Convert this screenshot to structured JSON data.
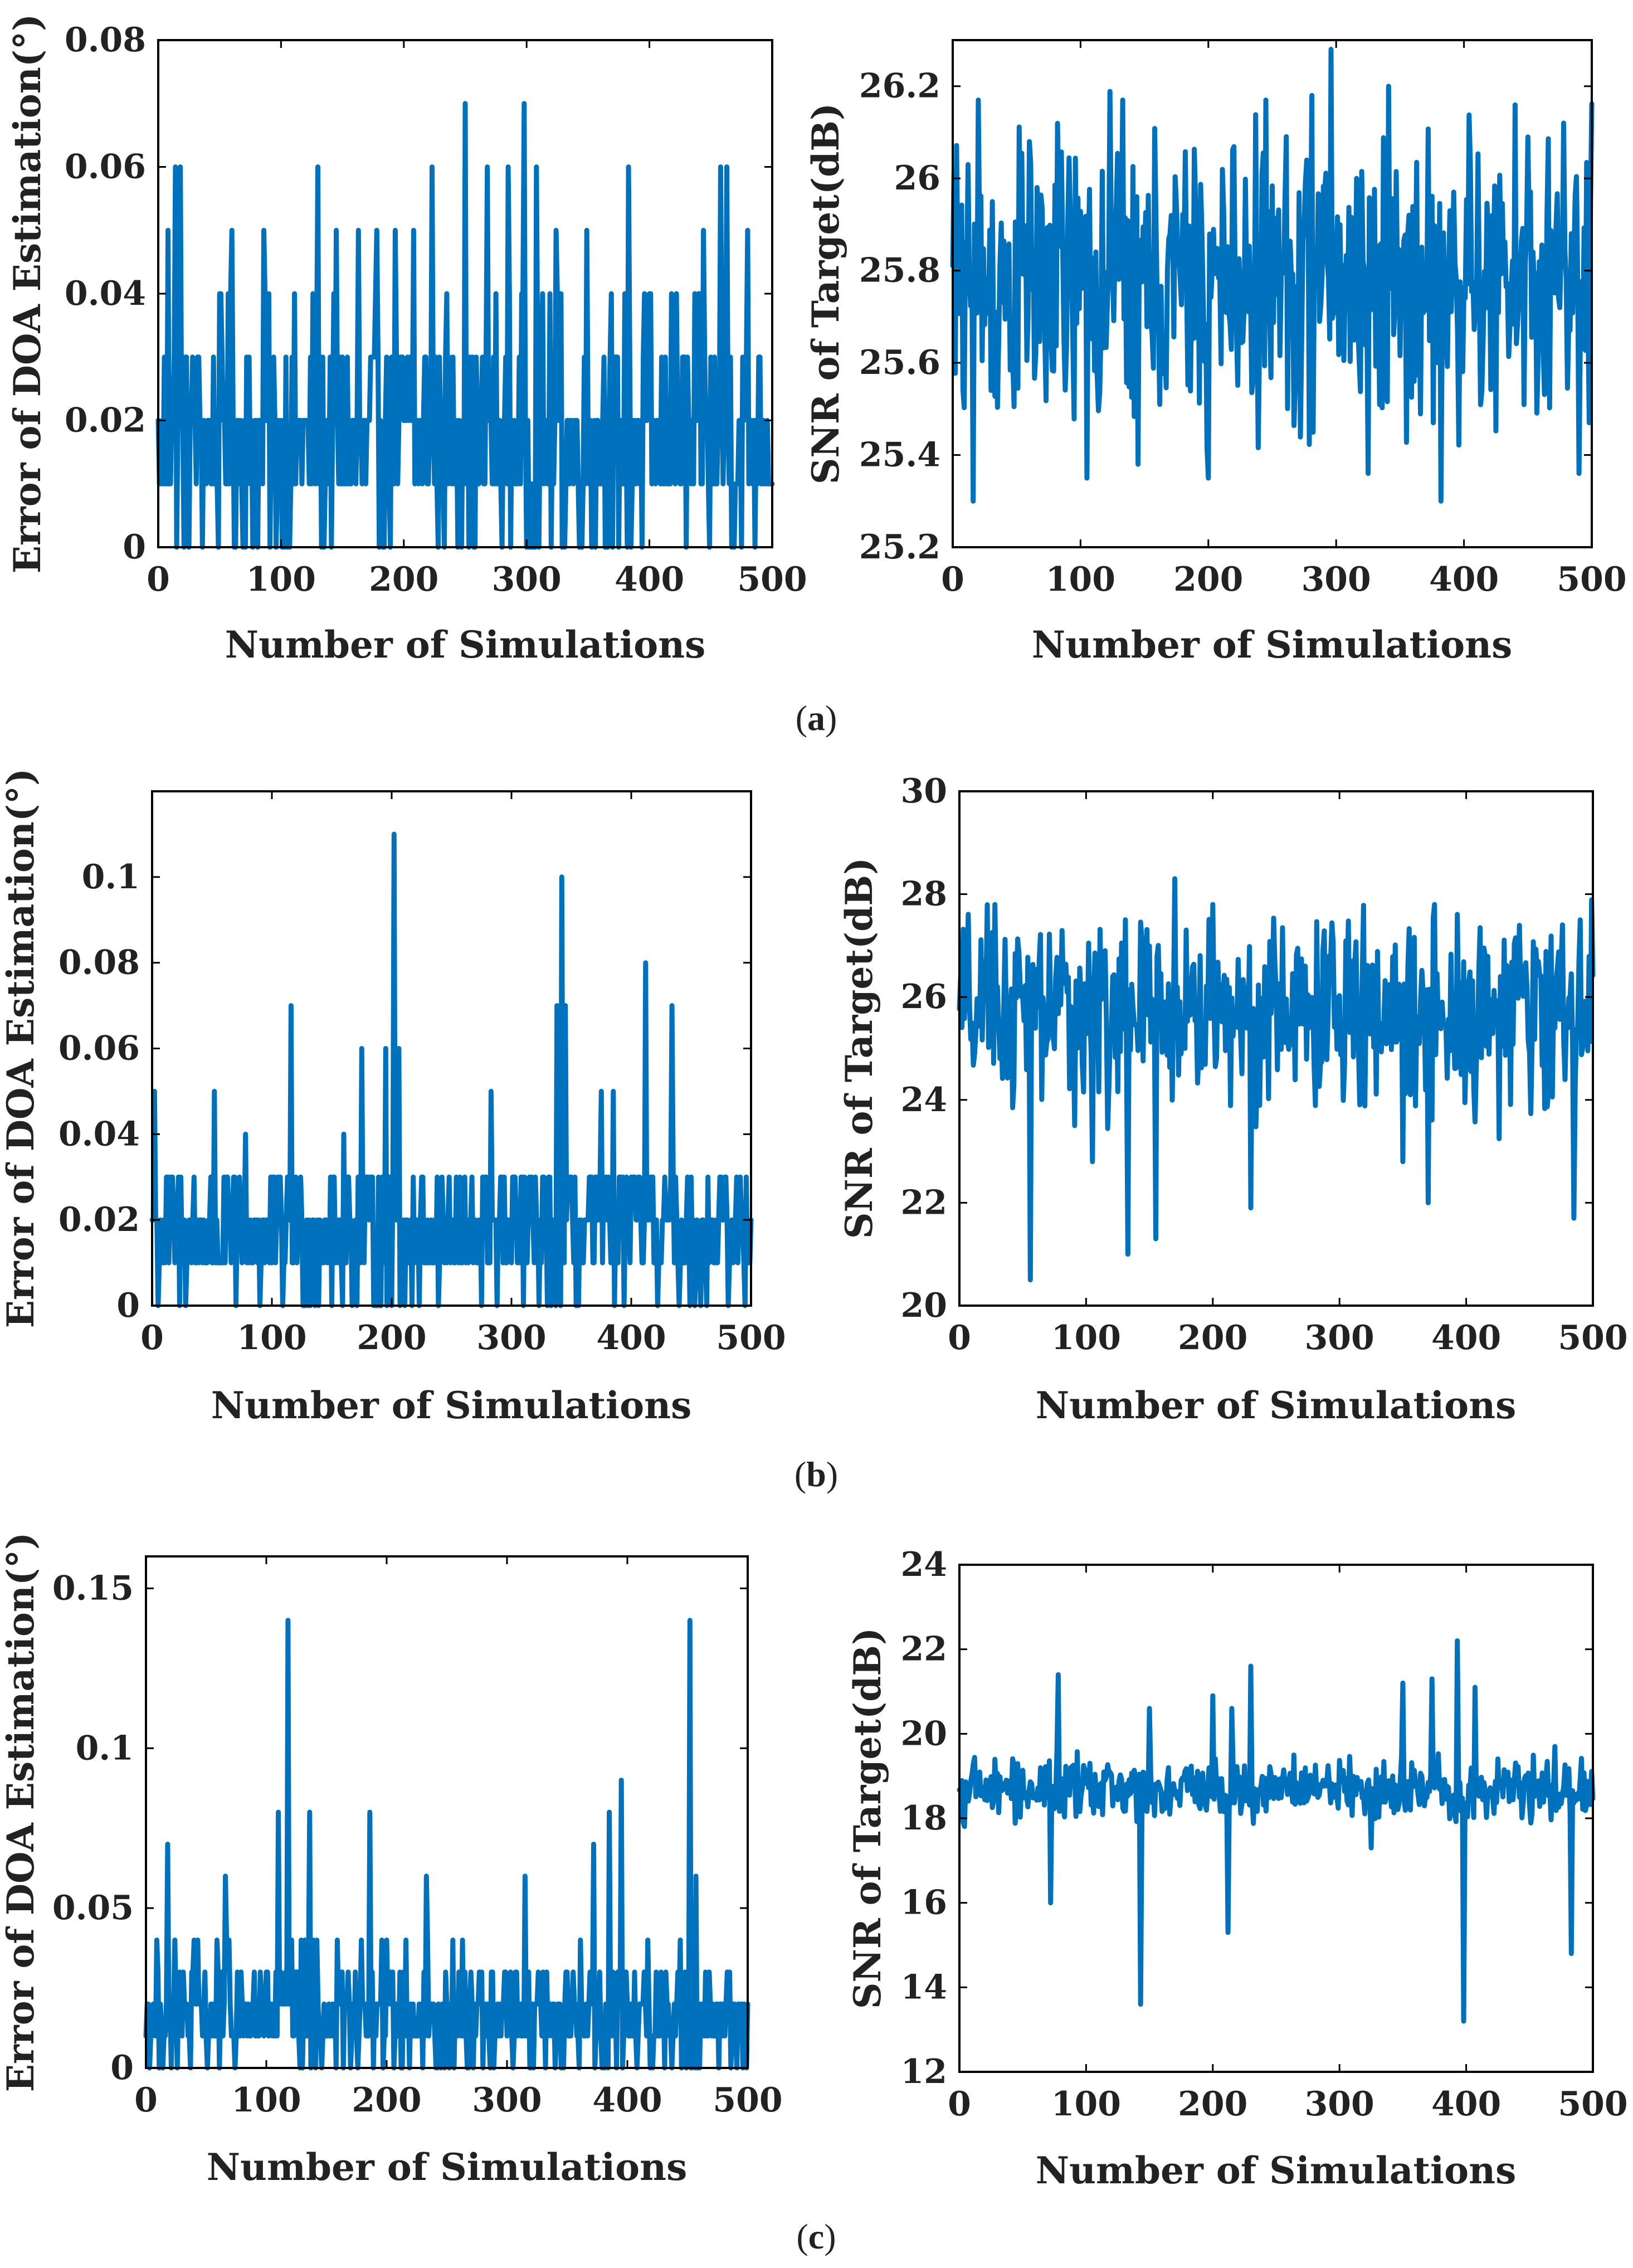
{
  "chart_data": [
    {
      "type": "line",
      "id": "a1",
      "xlim": [
        0,
        500
      ],
      "ylim": [
        0,
        0.08
      ],
      "xticks": [
        "0",
        "100",
        "200",
        "300",
        "400",
        "500"
      ],
      "yticks": [
        "0",
        "0.02",
        "0.04",
        "0.06",
        "0.08"
      ],
      "xlabel": "Number of Simulations",
      "ylabel": "Error of DOA Estimation(°)",
      "series": [
        {
          "name": "DOA error",
          "color": "#0072bd",
          "baseline": 0.02,
          "levels": [
            0,
            0.01,
            0.02,
            0.03,
            0.04
          ],
          "peaks": [
            [
              1,
              0.01
            ],
            [
              8,
              0.05
            ],
            [
              14,
              0.06
            ],
            [
              18,
              0.06
            ],
            [
              60,
              0.05
            ],
            [
              86,
              0.05
            ],
            [
              130,
              0.06
            ],
            [
              145,
              0.05
            ],
            [
              163,
              0.05
            ],
            [
              178,
              0.05
            ],
            [
              193,
              0.05
            ],
            [
              208,
              0.05
            ],
            [
              223,
              0.06
            ],
            [
              250,
              0.07
            ],
            [
              268,
              0.06
            ],
            [
              285,
              0.06
            ],
            [
              298,
              0.07
            ],
            [
              308,
              0.06
            ],
            [
              324,
              0.05
            ],
            [
              349,
              0.05
            ],
            [
              369,
              0.04
            ],
            [
              383,
              0.06
            ],
            [
              396,
              0.04
            ],
            [
              418,
              0.04
            ],
            [
              444,
              0.05
            ],
            [
              458,
              0.06
            ],
            [
              463,
              0.06
            ],
            [
              480,
              0.05
            ],
            [
              490,
              0.03
            ]
          ]
        }
      ]
    },
    {
      "type": "line",
      "id": "a2",
      "xlim": [
        0,
        500
      ],
      "ylim": [
        25.2,
        26.3
      ],
      "xticks": [
        "0",
        "100",
        "200",
        "300",
        "400",
        "500"
      ],
      "yticks": [
        "25.2",
        "25.4",
        "25.6",
        "25.8",
        "26",
        "26.2"
      ],
      "xlabel": "Number of Simulations",
      "ylabel": "SNR of Target(dB)",
      "series": [
        {
          "name": "SNR",
          "color": "#0072bd",
          "baseline": 25.77,
          "spread": 0.16,
          "peaks": [
            [
              12,
              26.03
            ],
            [
              16,
              25.3
            ],
            [
              20,
              26.17
            ],
            [
              60,
              26.08
            ],
            [
              105,
              25.35
            ],
            [
              133,
              26.17
            ],
            [
              145,
              25.38
            ],
            [
              200,
              25.35
            ],
            [
              245,
              26.17
            ],
            [
              281,
              26.18
            ],
            [
              296,
              26.28
            ],
            [
              316,
              26.0
            ],
            [
              325,
              25.36
            ],
            [
              341,
              26.2
            ],
            [
              382,
              25.3
            ],
            [
              450,
              26.09
            ],
            [
              478,
              26.12
            ],
            [
              490,
              25.36
            ],
            [
              498,
              25.47
            ]
          ]
        }
      ]
    },
    {
      "type": "line",
      "id": "b1",
      "xlim": [
        0,
        500
      ],
      "ylim": [
        0,
        0.12
      ],
      "xticks": [
        "0",
        "100",
        "200",
        "300",
        "400",
        "500"
      ],
      "yticks": [
        "0",
        "0.02",
        "0.04",
        "0.06",
        "0.08",
        "0.1"
      ],
      "xlabel": "Number of Simulations",
      "ylabel": "Error of DOA Estimation(°)",
      "series": [
        {
          "name": "DOA error",
          "color": "#0072bd",
          "baseline": 0.015,
          "levels": [
            0,
            0.01,
            0.02,
            0.03
          ],
          "peaks": [
            [
              2,
              0.05
            ],
            [
              52,
              0.05
            ],
            [
              78,
              0.04
            ],
            [
              116,
              0.07
            ],
            [
              160,
              0.04
            ],
            [
              175,
              0.06
            ],
            [
              195,
              0.06
            ],
            [
              202,
              0.11
            ],
            [
              206,
              0.06
            ],
            [
              283,
              0.05
            ],
            [
              338,
              0.07
            ],
            [
              342,
              0.1
            ],
            [
              345,
              0.07
            ],
            [
              375,
              0.05
            ],
            [
              385,
              0.05
            ],
            [
              412,
              0.08
            ],
            [
              434,
              0.07
            ]
          ]
        }
      ]
    },
    {
      "type": "line",
      "id": "b2",
      "xlim": [
        0,
        500
      ],
      "ylim": [
        20,
        30
      ],
      "xticks": [
        "0",
        "100",
        "200",
        "300",
        "400",
        "500"
      ],
      "yticks": [
        "20",
        "22",
        "24",
        "26",
        "28",
        "30"
      ],
      "xlabel": "Number of Simulations",
      "ylabel": "SNR of Target(dB)",
      "series": [
        {
          "name": "SNR",
          "color": "#0072bd",
          "baseline": 25.7,
          "spread": 0.9,
          "peaks": [
            [
              28,
              27.8
            ],
            [
              56,
              20.5
            ],
            [
              105,
              22.8
            ],
            [
              133,
              21.0
            ],
            [
              155,
              21.3
            ],
            [
              170,
              28.3
            ],
            [
              200,
              27.8
            ],
            [
              230,
              21.9
            ],
            [
              350,
              22.8
            ],
            [
              370,
              22.0
            ],
            [
              375,
              27.8
            ],
            [
              485,
              21.7
            ],
            [
              490,
              27.5
            ]
          ]
        }
      ]
    },
    {
      "type": "line",
      "id": "c1",
      "xlim": [
        0,
        500
      ],
      "ylim": [
        0,
        0.16
      ],
      "xticks": [
        "0",
        "100",
        "200",
        "300",
        "400",
        "500"
      ],
      "yticks": [
        "0",
        "0.05",
        "0.1",
        "0.15"
      ],
      "xlabel": "Number of Simulations",
      "ylabel": "Error of DOA Estimation(°)",
      "series": [
        {
          "name": "DOA error",
          "color": "#0072bd",
          "baseline": 0.02,
          "levels": [
            0,
            0.01,
            0.02,
            0.03,
            0.04
          ],
          "peaks": [
            [
              18,
              0.07
            ],
            [
              66,
              0.06
            ],
            [
              110,
              0.08
            ],
            [
              118,
              0.14
            ],
            [
              136,
              0.08
            ],
            [
              186,
              0.08
            ],
            [
              233,
              0.06
            ],
            [
              315,
              0.06
            ],
            [
              372,
              0.07
            ],
            [
              385,
              0.08
            ],
            [
              395,
              0.09
            ],
            [
              452,
              0.14
            ],
            [
              457,
              0.06
            ]
          ]
        }
      ]
    },
    {
      "type": "line",
      "id": "c2",
      "xlim": [
        0,
        500
      ],
      "ylim": [
        12,
        24
      ],
      "xticks": [
        "0",
        "100",
        "200",
        "300",
        "400",
        "500"
      ],
      "yticks": [
        "12",
        "14",
        "16",
        "18",
        "20",
        "22",
        "24"
      ],
      "xlabel": "Number of Simulations",
      "ylabel": "SNR of Target(dB)",
      "series": [
        {
          "name": "SNR",
          "color": "#0072bd",
          "baseline": 18.7,
          "spread": 0.35,
          "peaks": [
            [
              72,
              16.0
            ],
            [
              78,
              21.4
            ],
            [
              143,
              13.6
            ],
            [
              150,
              20.6
            ],
            [
              200,
              20.9
            ],
            [
              212,
              15.3
            ],
            [
              215,
              20.6
            ],
            [
              230,
              21.6
            ],
            [
              325,
              17.3
            ],
            [
              350,
              21.2
            ],
            [
              373,
              21.3
            ],
            [
              393,
              22.2
            ],
            [
              398,
              13.2
            ],
            [
              407,
              21.1
            ],
            [
              470,
              19.7
            ],
            [
              483,
              14.8
            ]
          ]
        }
      ]
    }
  ],
  "captions": {
    "a": "(a)",
    "b": "(b)",
    "c": "(c)"
  },
  "caption_letters": {
    "a": "a",
    "b": "b",
    "c": "c"
  }
}
